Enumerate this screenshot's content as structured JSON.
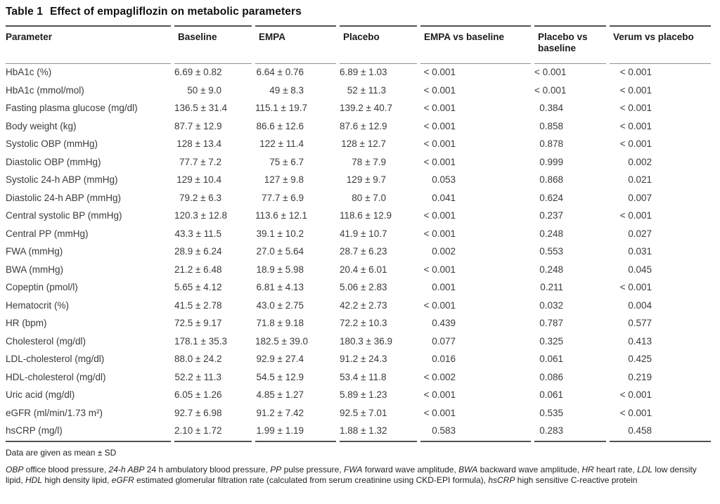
{
  "title": {
    "label": "Table 1",
    "text": "Effect of empagliflozin on metabolic parameters"
  },
  "table": {
    "columns": [
      "Parameter",
      "Baseline",
      "EMPA",
      "Placebo",
      "EMPA vs baseline",
      "Placebo vs baseline",
      "Verum vs placebo"
    ],
    "rows": [
      [
        "HbA1c (%)",
        "6.69 ± 0.82",
        "6.64 ± 0.76",
        "6.89 ± 1.03",
        "< 0.001",
        "< 0.001",
        "< 0.001"
      ],
      [
        "HbA1c (mmol/mol)",
        "50 ± 9.0",
        "49 ± 8.3",
        "52 ± 11.3",
        "< 0.001",
        "< 0.001",
        "< 0.001"
      ],
      [
        "Fasting plasma glucose (mg/dl)",
        "136.5 ± 31.4",
        "115.1 ± 19.7",
        "139.2 ± 40.7",
        "< 0.001",
        "0.384",
        "< 0.001"
      ],
      [
        "Body weight (kg)",
        "87.7 ± 12.9",
        "86.6 ± 12.6",
        "87.6 ± 12.9",
        "< 0.001",
        "0.858",
        "< 0.001"
      ],
      [
        "Systolic OBP (mmHg)",
        "128 ± 13.4",
        "122 ± 11.4",
        "128 ± 12.7",
        "< 0.001",
        "0.878",
        "< 0.001"
      ],
      [
        "Diastolic OBP (mmHg)",
        "77.7 ± 7.2",
        "75 ± 6.7",
        "78 ± 7.9",
        "< 0.001",
        "0.999",
        "0.002"
      ],
      [
        "Systolic 24-h ABP (mmHg)",
        "129 ± 10.4",
        "127 ± 9.8",
        "129 ± 9.7",
        "0.053",
        "0.868",
        "0.021"
      ],
      [
        "Diastolic 24-h ABP (mmHg)",
        "79.2 ± 6.3",
        "77.7 ± 6.9",
        "80 ± 7.0",
        "0.041",
        "0.624",
        "0.007"
      ],
      [
        "Central systolic BP (mmHg)",
        "120.3 ± 12.8",
        "113.6 ± 12.1",
        "118.6 ± 12.9",
        "< 0.001",
        "0.237",
        "< 0.001"
      ],
      [
        "Central PP (mmHg)",
        "43.3 ± 11.5",
        "39.1 ± 10.2",
        "41.9 ± 10.7",
        "< 0.001",
        "0.248",
        "0.027"
      ],
      [
        "FWA (mmHg)",
        "28.9 ± 6.24",
        "27.0 ± 5.64",
        "28.7 ± 6.23",
        "0.002",
        "0.553",
        "0.031"
      ],
      [
        "BWA (mmHg)",
        "21.2 ± 6.48",
        "18.9 ± 5.98",
        "20.4 ± 6.01",
        "< 0.001",
        "0.248",
        "0.045"
      ],
      [
        "Copeptin (pmol/l)",
        "5.65 ± 4.12",
        "6.81 ± 4.13",
        "5.06 ± 2.83",
        "0.001",
        "0.211",
        "< 0.001"
      ],
      [
        "Hematocrit (%)",
        "41.5 ± 2.78",
        "43.0 ± 2.75",
        "42.2 ± 2.73",
        "< 0.001",
        "0.032",
        "0.004"
      ],
      [
        "HR (bpm)",
        "72.5 ± 9.17",
        "71.8 ± 9.18",
        "72.2 ± 10.3",
        "0.439",
        "0.787",
        "0.577"
      ],
      [
        "Cholesterol (mg/dl)",
        "178.1 ± 35.3",
        "182.5 ± 39.0",
        "180.3 ± 36.9",
        "0.077",
        "0.325",
        "0.413"
      ],
      [
        "LDL-cholesterol (mg/dl)",
        "88.0 ± 24.2",
        "92.9 ± 27.4",
        "91.2 ± 24.3",
        "0.016",
        "0.061",
        "0.425"
      ],
      [
        "HDL-cholesterol (mg/dl)",
        "52.2 ± 11.3",
        "54.5 ± 12.9",
        "53.4 ± 11.8",
        "< 0.002",
        "0.086",
        "0.219"
      ],
      [
        "Uric acid (mg/dl)",
        "6.05 ± 1.26",
        "4.85 ± 1.27",
        "5.89 ± 1.23",
        "< 0.001",
        "0.061",
        "< 0.001"
      ],
      [
        "eGFR (ml/min/1.73 m²)",
        "92.7 ± 6.98",
        "91.2 ± 7.42",
        "92.5 ± 7.01",
        "< 0.001",
        "0.535",
        "< 0.001"
      ],
      [
        "hsCRP (mg/l)",
        "2.10 ± 1.72",
        "1.99 ± 1.19",
        "1.88 ± 1.32",
        "0.583",
        "0.283",
        "0.458"
      ]
    ]
  },
  "footnotes": {
    "data_note": "Data are given as mean ± SD",
    "abbreviations": [
      {
        "text": "OBP",
        "italic": true
      },
      {
        "text": " office blood pressure, ",
        "italic": false
      },
      {
        "text": "24-h ABP",
        "italic": true
      },
      {
        "text": " 24 h ambulatory blood pressure, ",
        "italic": false
      },
      {
        "text": "PP",
        "italic": true
      },
      {
        "text": " pulse pressure, ",
        "italic": false
      },
      {
        "text": "FWA",
        "italic": true
      },
      {
        "text": " forward wave amplitude, ",
        "italic": false
      },
      {
        "text": "BWA",
        "italic": true
      },
      {
        "text": " backward wave amplitude, ",
        "italic": false
      },
      {
        "text": "HR",
        "italic": true
      },
      {
        "text": " heart rate, ",
        "italic": false
      },
      {
        "text": "LDL",
        "italic": true
      },
      {
        "text": " low density lipid, ",
        "italic": false
      },
      {
        "text": "HDL",
        "italic": true
      },
      {
        "text": " high density lipid, ",
        "italic": false
      },
      {
        "text": "eGFR",
        "italic": true
      },
      {
        "text": " estimated glomerular filtration rate (calculated from serum creatinine using CKD-EPI formula), ",
        "italic": false
      },
      {
        "text": "hsCRP",
        "italic": true
      },
      {
        "text": " high sensitive C-reactive protein",
        "italic": false
      }
    ]
  },
  "colors": {
    "rule_dark": "#515153",
    "rule_light": "#8f9093",
    "text": "#3a3a3c",
    "heading": "#1b1b1b"
  }
}
